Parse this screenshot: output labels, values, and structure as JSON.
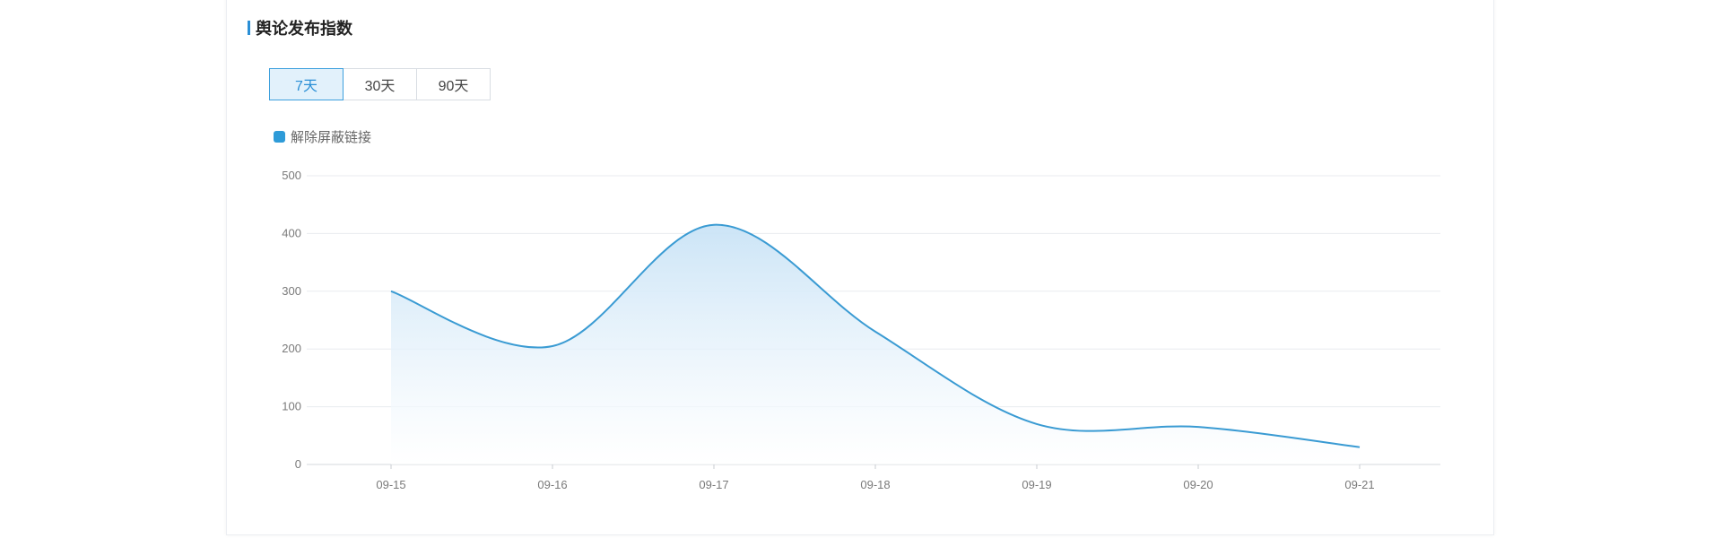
{
  "section": {
    "title": "舆论发布指数"
  },
  "range_tabs": [
    {
      "label": "7天",
      "active": true
    },
    {
      "label": "30天",
      "active": false
    },
    {
      "label": "90天",
      "active": false
    }
  ],
  "colors": {
    "accent": "#2a8fd6",
    "series_line": "#3a9bd3",
    "area_top": "#cfe6f7",
    "grid": "#e8ebef"
  },
  "chart_data": {
    "type": "area",
    "x": [
      "09-15",
      "09-16",
      "09-17",
      "09-18",
      "09-19",
      "09-20",
      "09-21"
    ],
    "series": [
      {
        "name": "解除屏蔽链接",
        "values": [
          300,
          205,
          415,
          230,
          70,
          65,
          30
        ]
      }
    ],
    "ylim": [
      0,
      500
    ],
    "yticks": [
      0,
      100,
      200,
      300,
      400,
      500
    ],
    "smooth": true,
    "grid": true,
    "legend": "top-left"
  }
}
